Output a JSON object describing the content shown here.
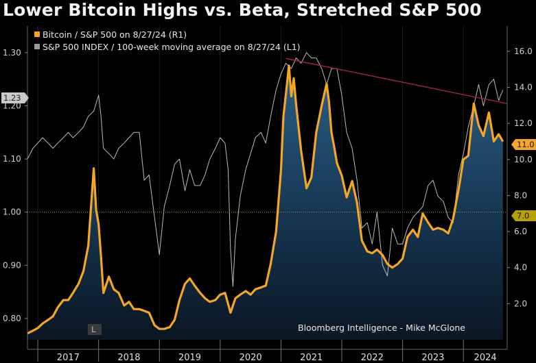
{
  "title": "Lower Bitcoin Highs vs. Beta, Stretched S&P 500",
  "colors": {
    "ratio": "#f5a623",
    "area_top": "#1f4e73",
    "area_bottom": "#0b1a2a",
    "sp_line": "#cfcfcf",
    "trendline": "#a0213a",
    "ref_line": "#b8a000"
  },
  "chart_data": {
    "type": "line",
    "left_axis": {
      "ylim": [
        0.76,
        1.35
      ],
      "ticks": [
        "0.80",
        "0.90",
        "1.00",
        "1.10",
        "1.20",
        "1.30"
      ]
    },
    "right_axis": {
      "ylim": [
        0,
        17.4
      ],
      "ticks": [
        "2.0",
        "4.0",
        "6.0",
        "8.0",
        "10.0",
        "12.0",
        "14.0",
        "16.0"
      ]
    },
    "x_labels": [
      "2017",
      "2018",
      "2019",
      "2020",
      "2021",
      "2022",
      "2023",
      "2024"
    ],
    "x_range": [
      2016.83,
      2024.72
    ],
    "series": [
      {
        "name": "Bitcoin / S&P 500 on 8/27/24 (R1)",
        "axis": "right",
        "style": "area-line",
        "last_value": "11.0",
        "x": [
          2016.83,
          2016.92,
          2017.0,
          2017.08,
          2017.17,
          2017.25,
          2017.33,
          2017.42,
          2017.5,
          2017.58,
          2017.67,
          2017.75,
          2017.83,
          2017.92,
          2017.96,
          2018.0,
          2018.04,
          2018.08,
          2018.17,
          2018.25,
          2018.33,
          2018.42,
          2018.5,
          2018.58,
          2018.67,
          2018.75,
          2018.83,
          2018.92,
          2019.0,
          2019.08,
          2019.17,
          2019.25,
          2019.33,
          2019.42,
          2019.5,
          2019.58,
          2019.67,
          2019.75,
          2019.83,
          2019.92,
          2020.0,
          2020.08,
          2020.17,
          2020.25,
          2020.33,
          2020.42,
          2020.5,
          2020.58,
          2020.67,
          2020.75,
          2020.83,
          2020.92,
          2021.0,
          2021.04,
          2021.08,
          2021.13,
          2021.17,
          2021.21,
          2021.25,
          2021.33,
          2021.42,
          2021.5,
          2021.58,
          2021.67,
          2021.75,
          2021.79,
          2021.83,
          2021.88,
          2021.92,
          2022.0,
          2022.08,
          2022.17,
          2022.25,
          2022.33,
          2022.42,
          2022.5,
          2022.58,
          2022.67,
          2022.75,
          2022.83,
          2022.92,
          2023.0,
          2023.08,
          2023.17,
          2023.25,
          2023.33,
          2023.42,
          2023.5,
          2023.58,
          2023.67,
          2023.75,
          2023.83,
          2023.92,
          2024.0,
          2024.08,
          2024.17,
          2024.25,
          2024.33,
          2024.42,
          2024.5,
          2024.58,
          2024.65
        ],
        "values": [
          0.35,
          0.5,
          0.65,
          0.9,
          1.1,
          1.3,
          1.8,
          2.2,
          2.2,
          2.6,
          3.1,
          3.8,
          5.2,
          9.5,
          7.2,
          6.4,
          4.6,
          2.6,
          3.5,
          2.8,
          2.6,
          1.9,
          2.1,
          1.7,
          1.7,
          1.6,
          1.5,
          0.8,
          0.6,
          0.6,
          0.7,
          1.1,
          2.2,
          3.1,
          3.4,
          3.0,
          2.6,
          2.3,
          2.1,
          2.2,
          2.5,
          2.6,
          1.5,
          2.3,
          2.5,
          2.7,
          2.5,
          2.8,
          2.9,
          3.0,
          4.2,
          6.0,
          9.4,
          12.4,
          13.6,
          15.2,
          13.5,
          14.5,
          13.0,
          10.5,
          8.4,
          9.0,
          11.5,
          13.0,
          14.2,
          13.2,
          11.5,
          10.6,
          9.8,
          9.1,
          7.9,
          8.8,
          7.6,
          5.5,
          4.9,
          4.8,
          5.0,
          4.7,
          4.2,
          4.0,
          4.2,
          4.5,
          5.7,
          6.1,
          5.7,
          7.0,
          6.5,
          6.1,
          6.2,
          6.1,
          5.9,
          6.7,
          8.3,
          10.0,
          10.2,
          13.1,
          11.9,
          11.3,
          12.6,
          11.0,
          11.4,
          11.0
        ]
      },
      {
        "name": "S&P 500 INDEX / 100-week moving average on 8/27/24 (L1)",
        "axis": "left",
        "style": "line",
        "last_value": "1.23",
        "x": [
          2016.83,
          2016.92,
          2017.0,
          2017.08,
          2017.17,
          2017.25,
          2017.33,
          2017.42,
          2017.5,
          2017.58,
          2017.67,
          2017.75,
          2017.83,
          2017.92,
          2018.0,
          2018.04,
          2018.08,
          2018.17,
          2018.25,
          2018.33,
          2018.42,
          2018.5,
          2018.58,
          2018.67,
          2018.75,
          2018.83,
          2018.92,
          2019.0,
          2019.08,
          2019.17,
          2019.25,
          2019.33,
          2019.42,
          2019.5,
          2019.58,
          2019.67,
          2019.75,
          2019.83,
          2019.92,
          2020.0,
          2020.08,
          2020.13,
          2020.17,
          2020.21,
          2020.25,
          2020.33,
          2020.42,
          2020.5,
          2020.58,
          2020.67,
          2020.75,
          2020.83,
          2020.92,
          2021.0,
          2021.08,
          2021.17,
          2021.25,
          2021.33,
          2021.42,
          2021.5,
          2021.58,
          2021.67,
          2021.75,
          2021.83,
          2021.92,
          2022.0,
          2022.08,
          2022.17,
          2022.25,
          2022.33,
          2022.42,
          2022.5,
          2022.58,
          2022.67,
          2022.75,
          2022.83,
          2022.92,
          2023.0,
          2023.08,
          2023.17,
          2023.25,
          2023.33,
          2023.42,
          2023.5,
          2023.58,
          2023.67,
          2023.75,
          2023.83,
          2023.92,
          2024.0,
          2024.08,
          2024.17,
          2024.25,
          2024.33,
          2024.42,
          2024.5,
          2024.58,
          2024.65
        ],
        "values": [
          1.1,
          1.12,
          1.13,
          1.14,
          1.13,
          1.12,
          1.13,
          1.14,
          1.15,
          1.14,
          1.15,
          1.16,
          1.18,
          1.19,
          1.22,
          1.18,
          1.12,
          1.11,
          1.1,
          1.12,
          1.13,
          1.14,
          1.15,
          1.15,
          1.06,
          1.07,
          0.99,
          0.92,
          1.01,
          1.05,
          1.09,
          1.1,
          1.04,
          1.08,
          1.05,
          1.05,
          1.07,
          1.1,
          1.12,
          1.14,
          1.13,
          1.08,
          0.93,
          0.86,
          0.95,
          1.03,
          1.08,
          1.11,
          1.14,
          1.15,
          1.13,
          1.18,
          1.23,
          1.26,
          1.28,
          1.27,
          1.29,
          1.28,
          1.3,
          1.29,
          1.29,
          1.27,
          1.24,
          1.27,
          1.27,
          1.22,
          1.15,
          1.12,
          1.06,
          0.97,
          0.98,
          0.94,
          1.0,
          0.9,
          0.88,
          0.97,
          0.94,
          0.94,
          0.97,
          0.99,
          1.0,
          1.01,
          1.05,
          1.06,
          1.03,
          1.02,
          0.99,
          0.98,
          1.07,
          1.11,
          1.16,
          1.2,
          1.24,
          1.2,
          1.24,
          1.25,
          1.21,
          1.23
        ]
      }
    ],
    "trendline": {
      "axis": "right",
      "points": [
        [
          2021.08,
          15.6
        ],
        [
          2024.72,
          13.1
        ]
      ]
    },
    "reference_line": {
      "axis": "left",
      "value": 1.0
    }
  },
  "legend": [
    {
      "label": "Bitcoin / S&P 500 on 8/27/24 (R1)",
      "color": "#f5a623"
    },
    {
      "label": "S&P 500 INDEX / 100-week moving average on 8/27/24 (L1)",
      "color": "#9a9a9a"
    }
  ],
  "badges": {
    "left_value": "1.23",
    "right_value": "11.0",
    "right_ref_value": "7.0",
    "bottom_marker": "L"
  },
  "credit": "Bloomberg Intelligence - Mike McGlone"
}
